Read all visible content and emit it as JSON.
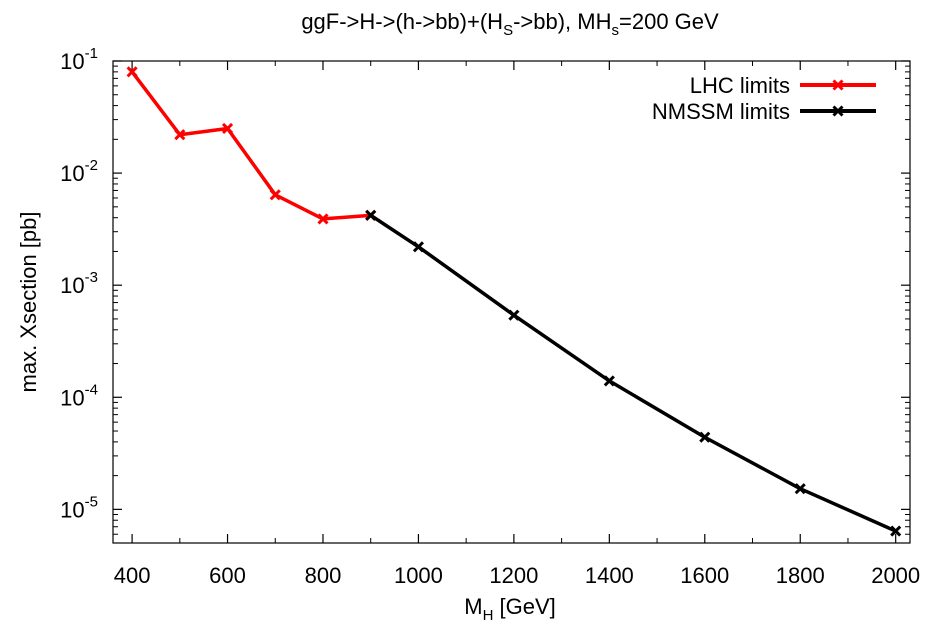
{
  "chart_data": {
    "type": "line",
    "title": {
      "main": "ggF->H->(h->bb)+(H",
      "sub1": "S",
      "mid": "->bb), MH",
      "sub2": "s",
      "tail": "=200 GeV"
    },
    "xlabel": {
      "main": "M",
      "sub": "H",
      "tail": " [GeV]"
    },
    "ylabel": "max. Xsection [pb]",
    "xlim": [
      360,
      2030
    ],
    "ylim_log10": [
      -5.3,
      -1
    ],
    "log_y": true,
    "grid": false,
    "legend_position": "top-right",
    "x_ticks": [
      400,
      600,
      800,
      1000,
      1200,
      1400,
      1600,
      1800,
      2000
    ],
    "x_tick_labels": [
      "400",
      "600",
      "800",
      "1000",
      "1200",
      "1400",
      "1600",
      "1800",
      "2000"
    ],
    "y_ticks": [
      {
        "exp": -1,
        "base": "10",
        "sup": "-1"
      },
      {
        "exp": -2,
        "base": "10",
        "sup": "-2"
      },
      {
        "exp": -3,
        "base": "10",
        "sup": "-3"
      },
      {
        "exp": -4,
        "base": "10",
        "sup": "-4"
      },
      {
        "exp": -5,
        "base": "10",
        "sup": "-5"
      }
    ],
    "series": [
      {
        "name": "LHC limits",
        "color": "#ff0000",
        "x": [
          400,
          500,
          600,
          700,
          800,
          900
        ],
        "y": [
          0.08,
          0.022,
          0.025,
          0.0064,
          0.0039,
          0.0042
        ]
      },
      {
        "name": "NMSSM limits",
        "color": "#000000",
        "x": [
          900,
          1000,
          1200,
          1400,
          1600,
          1800,
          2000
        ],
        "y": [
          0.0042,
          0.0022,
          0.00054,
          0.00014,
          4.4e-05,
          1.53e-05,
          6.4e-06
        ]
      }
    ]
  }
}
